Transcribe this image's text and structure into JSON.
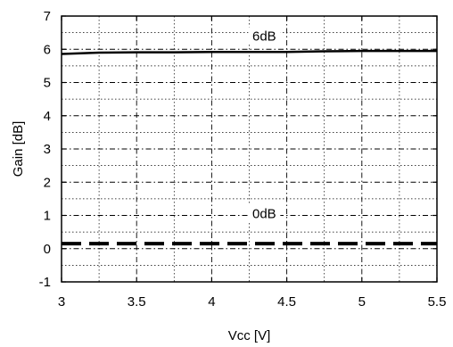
{
  "chart_data": {
    "type": "line",
    "title": "",
    "xlabel": "Vcc [V]",
    "ylabel": "Gain [dB]",
    "xlim": [
      3,
      5.5
    ],
    "ylim": [
      -1,
      7
    ],
    "x_ticks": [
      3,
      3.5,
      4,
      4.5,
      5,
      5.5
    ],
    "x_tick_labels": [
      "3",
      "3.5",
      "4",
      "4.5",
      "5",
      "5.5"
    ],
    "y_ticks": [
      -1,
      0,
      1,
      2,
      3,
      4,
      5,
      6,
      7
    ],
    "y_tick_labels": [
      "-1",
      "0",
      "1",
      "2",
      "3",
      "4",
      "5",
      "6",
      "7"
    ],
    "grid": true,
    "legend": "none",
    "series": [
      {
        "style": "solid",
        "color": "#000000",
        "x": [
          3.0,
          3.25,
          3.5,
          3.75,
          4.0,
          4.25,
          4.5,
          4.75,
          5.0,
          5.25,
          5.5
        ],
        "y": [
          5.86,
          5.9,
          5.91,
          5.91,
          5.92,
          5.92,
          5.92,
          5.94,
          5.95,
          5.95,
          5.95
        ]
      },
      {
        "style": "dashed",
        "color": "#000000",
        "x": [
          3.0,
          3.5,
          4.0,
          4.5,
          5.0,
          5.5
        ],
        "y": [
          0.15,
          0.15,
          0.15,
          0.15,
          0.15,
          0.15
        ]
      }
    ],
    "annotations": [
      {
        "text": "6dB",
        "x": 4.35,
        "y": 6.4
      },
      {
        "text": "0dB",
        "x": 4.35,
        "y": 1.05
      }
    ]
  }
}
